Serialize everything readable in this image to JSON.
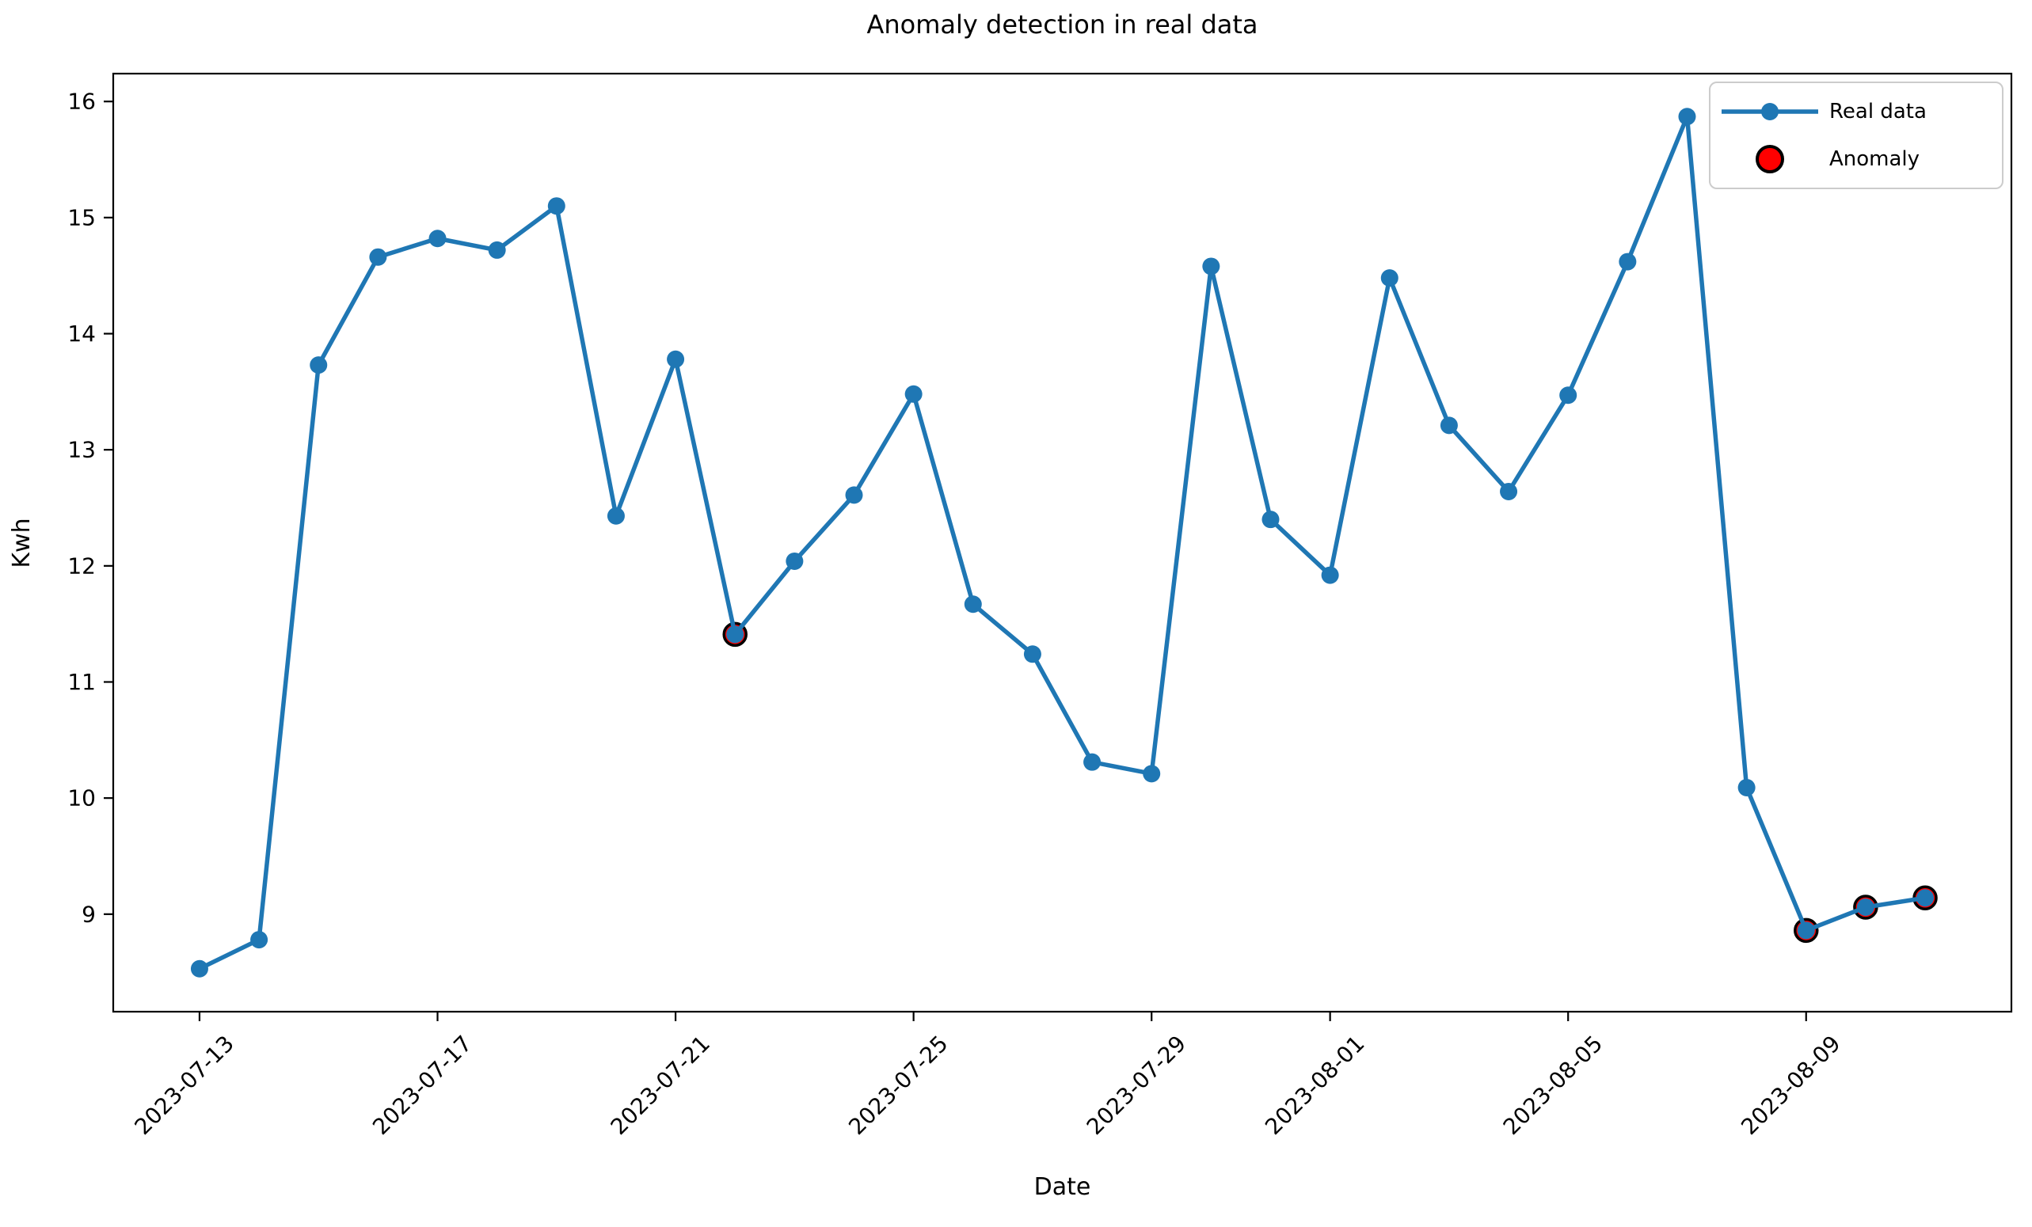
{
  "chart_data": {
    "type": "line",
    "title": "Anomaly detection in real data",
    "xlabel": "Date",
    "ylabel": "Kwh",
    "x": [
      "2023-07-13",
      "2023-07-14",
      "2023-07-15",
      "2023-07-16",
      "2023-07-17",
      "2023-07-18",
      "2023-07-19",
      "2023-07-20",
      "2023-07-21",
      "2023-07-22",
      "2023-07-23",
      "2023-07-24",
      "2023-07-25",
      "2023-07-26",
      "2023-07-27",
      "2023-07-28",
      "2023-07-29",
      "2023-07-30",
      "2023-07-31",
      "2023-08-01",
      "2023-08-02",
      "2023-08-03",
      "2023-08-04",
      "2023-08-05",
      "2023-08-06",
      "2023-08-07",
      "2023-08-08",
      "2023-08-09",
      "2023-08-10",
      "2023-08-11"
    ],
    "series": [
      {
        "name": "Real data",
        "values": [
          8.53,
          8.78,
          13.73,
          14.66,
          14.82,
          14.72,
          15.1,
          12.43,
          13.78,
          11.41,
          12.04,
          12.61,
          13.48,
          11.67,
          11.24,
          10.31,
          10.21,
          14.58,
          12.4,
          11.92,
          14.48,
          13.21,
          12.64,
          13.47,
          14.62,
          15.87,
          10.09,
          8.86,
          9.06,
          9.14
        ]
      }
    ],
    "anomalies": {
      "name": "Anomaly",
      "dates": [
        "2023-07-22",
        "2023-08-09",
        "2023-08-10",
        "2023-08-11"
      ],
      "values": [
        11.41,
        8.86,
        9.06,
        9.14
      ]
    },
    "ylim": [
      8.16,
      16.24
    ],
    "y_ticks": [
      9,
      10,
      11,
      12,
      13,
      14,
      15,
      16
    ],
    "x_tick_labels": [
      "2023-07-13",
      "2023-07-17",
      "2023-07-21",
      "2023-07-25",
      "2023-07-29",
      "2023-08-01",
      "2023-08-05",
      "2023-08-09"
    ],
    "x_tick_rotation_deg": 45,
    "legend": {
      "position": "upper right",
      "entries": [
        "Real data",
        "Anomaly"
      ]
    },
    "colors": {
      "line": "#1f77b4",
      "marker": "#1f77b4",
      "anomaly_fill": "#ff0000",
      "anomaly_edge": "#000000",
      "axis": "#000000",
      "text": "#000000"
    },
    "grid": false
  }
}
